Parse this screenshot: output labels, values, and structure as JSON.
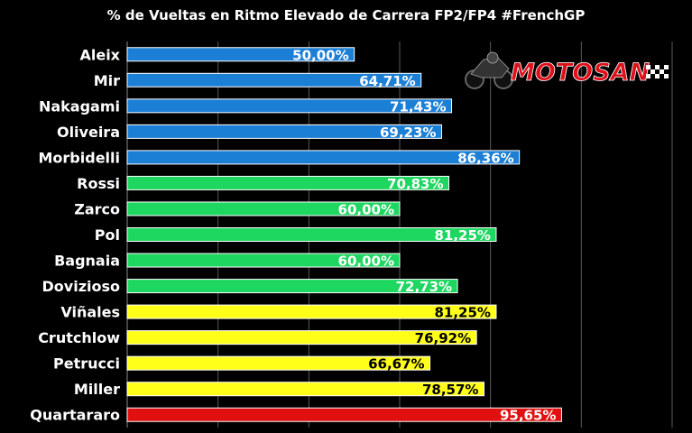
{
  "chart_data": {
    "type": "bar",
    "orientation": "horizontal",
    "title": "% de Vueltas en Ritmo Elevado de Carrera FP2/FP4 #FrenchGP",
    "categories": [
      "Aleix",
      "Mir",
      "Nakagami",
      "Oliveira",
      "Morbidelli",
      "Rossi",
      "Zarco",
      "Pol",
      "Bagnaia",
      "Dovizioso",
      "Viñales",
      "Crutchlow",
      "Petrucci",
      "Miller",
      "Quartararo"
    ],
    "values": [
      50.0,
      64.71,
      71.43,
      69.23,
      86.36,
      70.83,
      60.0,
      81.25,
      60.0,
      72.73,
      81.25,
      76.92,
      66.67,
      78.57,
      95.65
    ],
    "value_labels": [
      "50,00%",
      "64,71%",
      "71,43%",
      "69,23%",
      "86,36%",
      "70,83%",
      "60,00%",
      "81,25%",
      "60,00%",
      "72,73%",
      "81,25%",
      "76,92%",
      "66,67%",
      "78,57%",
      "95,65%"
    ],
    "colors": [
      "#1c7fd6",
      "#1c7fd6",
      "#1c7fd6",
      "#1c7fd6",
      "#1c7fd6",
      "#1ed760",
      "#1ed760",
      "#1ed760",
      "#1ed760",
      "#1ed760",
      "#ffff1a",
      "#ffff1a",
      "#ffff1a",
      "#ffff1a",
      "#e01010"
    ],
    "label_colors": [
      "#ffffff",
      "#ffffff",
      "#ffffff",
      "#ffffff",
      "#ffffff",
      "#ffffff",
      "#ffffff",
      "#ffffff",
      "#ffffff",
      "#ffffff",
      "#000000",
      "#000000",
      "#000000",
      "#000000",
      "#ffffff"
    ],
    "xlim": [
      0,
      120
    ],
    "grid": true
  },
  "logo": {
    "text": "MOTOSAN"
  }
}
